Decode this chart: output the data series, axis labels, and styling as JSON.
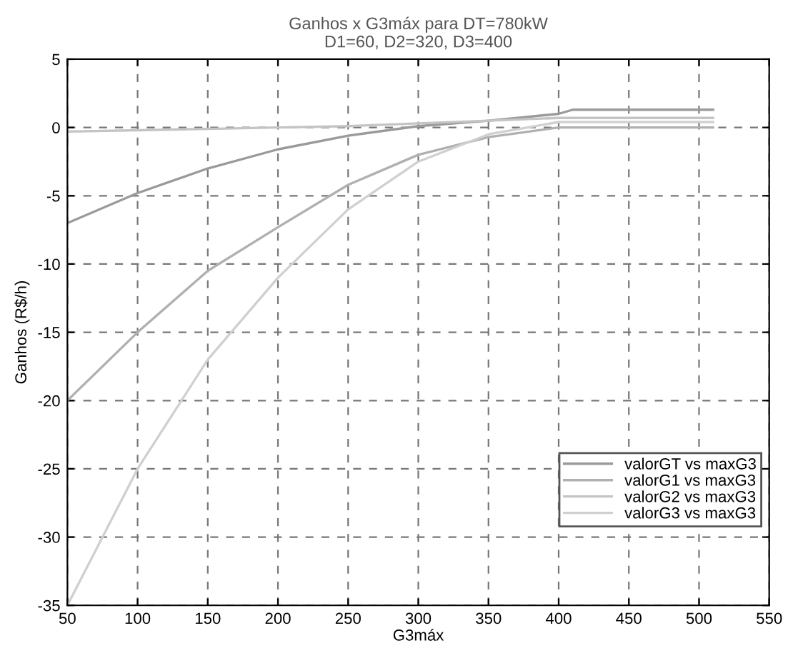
{
  "chart_data": {
    "type": "line",
    "title": "Ganhos x G3máx para DT=780kW\nD1=60, D2=320, D3=400",
    "xlabel": "G3máx",
    "ylabel": "Ganhos (R$/h)",
    "xlim": [
      50,
      550
    ],
    "ylim": [
      -35,
      5
    ],
    "xticks": [
      50,
      100,
      150,
      200,
      250,
      300,
      350,
      400,
      450,
      500,
      550
    ],
    "yticks": [
      -35,
      -30,
      -25,
      -20,
      -15,
      -10,
      -5,
      0,
      5
    ],
    "grid": true,
    "legend": "bottom right",
    "line_style": "solid",
    "marker": "none",
    "series": [
      {
        "name": "valorGT vs maxG3",
        "color": "#9a9a9a",
        "x": [
          50,
          100,
          150,
          200,
          250,
          300,
          350,
          400,
          410,
          510
        ],
        "values": [
          -7,
          -4.8,
          -3,
          -1.6,
          -0.6,
          0.1,
          0.5,
          1.0,
          1.3,
          1.3
        ]
      },
      {
        "name": "valorG1 vs maxG3",
        "color": "#b0b0b0",
        "x": [
          50,
          100,
          150,
          200,
          250,
          300,
          350,
          400,
          510
        ],
        "values": [
          -20,
          -15,
          -10.5,
          -7.3,
          -4.2,
          -2,
          -0.7,
          0,
          0
        ]
      },
      {
        "name": "valorG2 vs maxG3",
        "color": "#c4c4c4",
        "x": [
          50,
          100,
          150,
          200,
          250,
          300,
          350,
          400,
          510
        ],
        "values": [
          -0.3,
          -0.2,
          -0.1,
          0,
          0.1,
          0.3,
          0.5,
          0.7,
          0.7
        ]
      },
      {
        "name": "valorG3 vs maxG3",
        "color": "#d0d0d0",
        "x": [
          50,
          100,
          150,
          200,
          250,
          300,
          350,
          400,
          510
        ],
        "values": [
          -35,
          -25,
          -17,
          -11,
          -6,
          -2.5,
          -0.5,
          0.4,
          0.4
        ]
      }
    ]
  }
}
